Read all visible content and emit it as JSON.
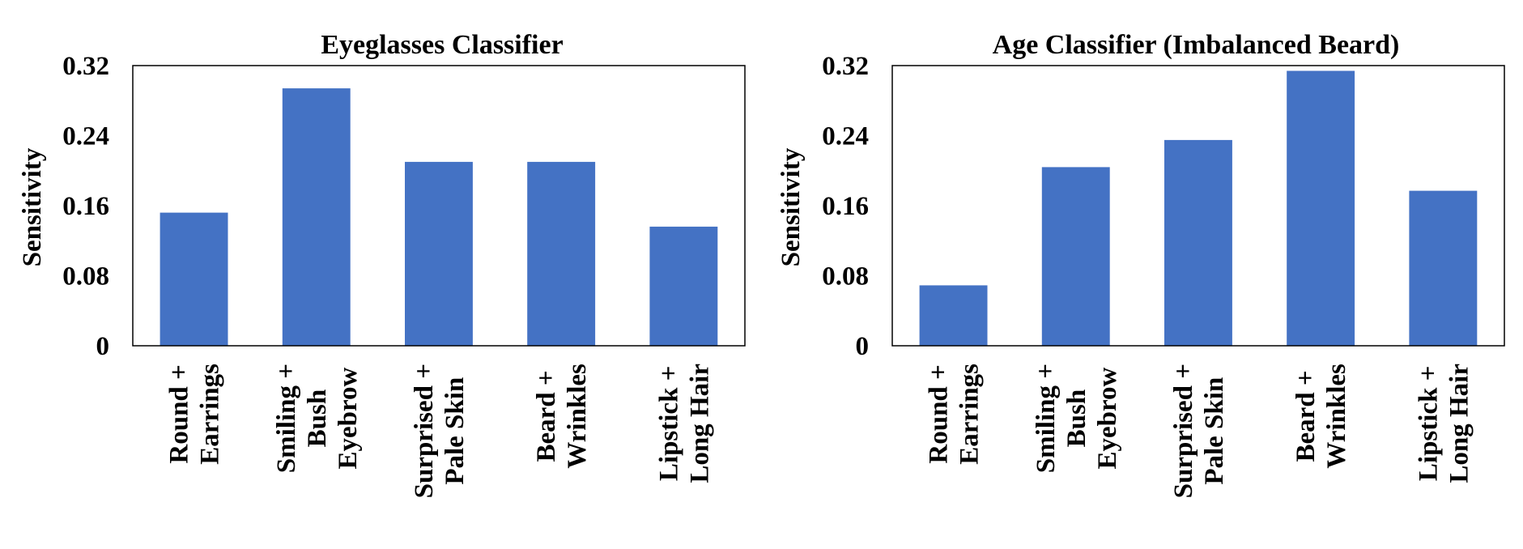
{
  "chart_data": [
    {
      "type": "bar",
      "title": "Eyeglasses Classifier",
      "ylabel": "Sensitivity",
      "xlabel": "",
      "ylim": [
        0,
        0.32
      ],
      "yticks": [
        "0",
        "0.08",
        "0.16",
        "0.24",
        "0.32"
      ],
      "yticks_values": [
        0,
        0.08,
        0.16,
        0.24,
        0.32
      ],
      "categories": [
        [
          "Round +",
          "Earrings"
        ],
        [
          "Smiling +",
          "Bush",
          "Eyebrow"
        ],
        [
          "Surprised +",
          "Pale Skin"
        ],
        [
          "Beard +",
          "Wrinkles"
        ],
        [
          "Lipstick +",
          "Long Hair"
        ]
      ],
      "values": [
        0.152,
        0.294,
        0.21,
        0.21,
        0.136
      ],
      "bar_color": "#4472C4",
      "grid": false,
      "legend": "none"
    },
    {
      "type": "bar",
      "title": "Age Classifier (Imbalanced Beard)",
      "ylabel": "Sensitivity",
      "xlabel": "",
      "ylim": [
        0,
        0.32
      ],
      "yticks": [
        "0",
        "0.08",
        "0.16",
        "0.24",
        "0.32"
      ],
      "yticks_values": [
        0,
        0.08,
        0.16,
        0.24,
        0.32
      ],
      "categories": [
        [
          "Round +",
          "Earrings"
        ],
        [
          "Smiling +",
          "Bush",
          "Eyebrow"
        ],
        [
          "Surprised +",
          "Pale Skin"
        ],
        [
          "Beard +",
          "Wrinkles"
        ],
        [
          "Lipstick +",
          "Long Hair"
        ]
      ],
      "values": [
        0.069,
        0.204,
        0.235,
        0.314,
        0.177
      ],
      "bar_color": "#4472C4",
      "grid": false,
      "legend": "none"
    }
  ]
}
